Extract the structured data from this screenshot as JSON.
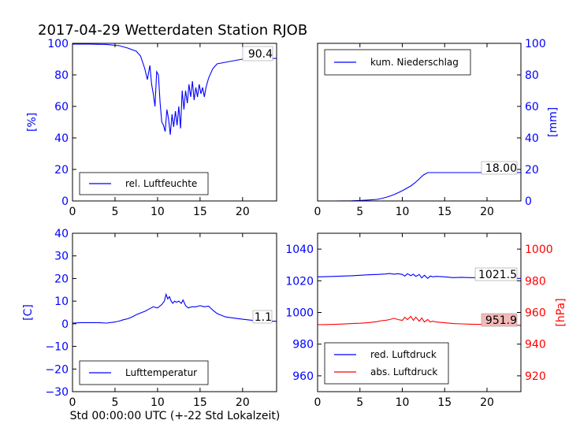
{
  "figure": {
    "title": "2017-04-29 Wetterdaten Station RJOB",
    "xlabel": "Std 00:00:00 UTC (+-22 Std Lokalzeit)"
  },
  "colors": {
    "blue": "#0000ff",
    "red": "#ff0000",
    "axis": "#000000",
    "badge_red": "#f4b9b9"
  },
  "chart_data": [
    {
      "type": "line",
      "id": "humidity",
      "xlim": [
        0,
        24
      ],
      "ylim": [
        0,
        100
      ],
      "xticks": [
        "0",
        "5",
        "10",
        "15",
        "20"
      ],
      "yticks": [
        "0",
        "20",
        "40",
        "60",
        "80",
        "100"
      ],
      "ylabel": "[%]",
      "legend": "lower-left",
      "last_value_label": "90.4",
      "series": [
        {
          "name": "rel. Luftfeuchte",
          "color": "#0000ff",
          "x": [
            0,
            2,
            4,
            5.5,
            6.5,
            7.5,
            8,
            8.5,
            8.8,
            9.1,
            9.3,
            9.5,
            9.7,
            9.9,
            10.1,
            10.3,
            10.5,
            10.7,
            10.9,
            11.1,
            11.3,
            11.5,
            11.7,
            11.9,
            12.1,
            12.3,
            12.5,
            12.7,
            12.9,
            13.1,
            13.3,
            13.5,
            13.7,
            13.9,
            14.1,
            14.3,
            14.5,
            14.7,
            14.9,
            15.1,
            15.3,
            15.5,
            15.7,
            16,
            16.5,
            17,
            18,
            19,
            20,
            21,
            22,
            23,
            24
          ],
          "y": [
            99.5,
            99.5,
            99.3,
            98.5,
            97,
            95,
            92,
            84,
            77,
            86,
            74,
            68,
            60,
            82,
            80,
            62,
            50,
            48,
            44,
            58,
            52,
            42,
            55,
            47,
            57,
            48,
            60,
            46,
            70,
            58,
            70,
            62,
            74,
            66,
            76,
            64,
            72,
            66,
            74,
            68,
            72,
            66,
            72,
            78,
            84,
            87,
            88,
            89,
            90,
            91,
            91,
            90.5,
            90.4
          ]
        }
      ]
    },
    {
      "type": "line",
      "id": "precip",
      "xlim": [
        0,
        24
      ],
      "ylim": [
        0,
        100
      ],
      "xticks": [
        "0",
        "5",
        "10",
        "15",
        "20"
      ],
      "yticks": [
        "0",
        "20",
        "40",
        "60",
        "80",
        "100"
      ],
      "ylabel": "[mm]",
      "legend": "top-left",
      "last_value_label": "18.00",
      "series": [
        {
          "name": "kum. Niederschlag",
          "color": "#0000ff",
          "x": [
            0,
            2,
            4,
            5,
            6,
            7,
            7.5,
            8,
            8.5,
            9,
            9.5,
            10,
            10.5,
            11,
            11.5,
            12,
            12.5,
            13,
            13.5,
            14,
            15,
            16,
            18,
            20,
            22,
            24
          ],
          "y": [
            0,
            0,
            0.1,
            0.3,
            0.6,
            1,
            1.5,
            2.2,
            3,
            4,
            5.2,
            6.5,
            8,
            9.5,
            11.5,
            14,
            16.5,
            18,
            18,
            18,
            18,
            18,
            18,
            18,
            18,
            18
          ]
        }
      ]
    },
    {
      "type": "line",
      "id": "temperature",
      "xlim": [
        0,
        24
      ],
      "ylim": [
        -30,
        40
      ],
      "xticks": [
        "0",
        "5",
        "10",
        "15",
        "20"
      ],
      "yticks": [
        "−30",
        "−20",
        "−10",
        "0",
        "10",
        "20",
        "30",
        "40"
      ],
      "ylabel": "[C]",
      "legend": "lower-left",
      "last_value_label": "1.1",
      "series": [
        {
          "name": "Lufttemperatur",
          "color": "#0000ff",
          "x": [
            0,
            1,
            2,
            3,
            4,
            5,
            5.5,
            6,
            6.5,
            7,
            7.5,
            8,
            8.5,
            9,
            9.5,
            10,
            10.5,
            10.8,
            11,
            11.2,
            11.4,
            11.6,
            11.8,
            12,
            12.2,
            12.5,
            12.8,
            13,
            13.3,
            13.6,
            14,
            14.5,
            15,
            15.5,
            16,
            16.5,
            17,
            18,
            19,
            20,
            21,
            22,
            23,
            24
          ],
          "y": [
            0.3,
            0.5,
            0.5,
            0.5,
            0.3,
            0.8,
            1.2,
            1.8,
            2.2,
            3,
            4,
            4.8,
            5.5,
            6.5,
            7.5,
            7,
            8.5,
            10,
            13,
            11,
            12,
            10,
            9,
            10,
            9.5,
            10,
            9,
            10.5,
            8,
            7,
            7.5,
            7.5,
            8,
            7.5,
            7.8,
            6,
            4.5,
            3,
            2.5,
            2,
            1.6,
            1.4,
            1.2,
            1.1
          ]
        }
      ]
    },
    {
      "type": "line",
      "id": "pressure",
      "xlim": [
        0,
        24
      ],
      "ylim": [
        950,
        1050
      ],
      "ylim_right": [
        910,
        1010
      ],
      "xticks": [
        "0",
        "5",
        "10",
        "15",
        "20"
      ],
      "yticks": [
        "960",
        "980",
        "1000",
        "1020",
        "1040"
      ],
      "yticks_right": [
        "920",
        "940",
        "960",
        "980",
        "1000"
      ],
      "ylabel_right": "[hPa]",
      "legend": "lower-left",
      "series": [
        {
          "name": "red. Luftdruck",
          "color": "#0000ff",
          "axis": "left",
          "last_value_label": "1021.5",
          "x": [
            0,
            1,
            2,
            3,
            4,
            5,
            6,
            7,
            8,
            8.5,
            9,
            9.5,
            10,
            10.3,
            10.6,
            11,
            11.3,
            11.6,
            12,
            12.3,
            12.6,
            13,
            13.3,
            13.6,
            14,
            15,
            16,
            17,
            18,
            19,
            20,
            21,
            22,
            23,
            24
          ],
          "y": [
            1022.5,
            1022.6,
            1022.8,
            1023,
            1023.2,
            1023.5,
            1023.8,
            1024,
            1024.3,
            1024.6,
            1024.2,
            1024.5,
            1024,
            1023,
            1024.5,
            1023.2,
            1024.2,
            1022.8,
            1024,
            1021.8,
            1023.5,
            1021.5,
            1023,
            1022.5,
            1022.8,
            1022.5,
            1022,
            1022.2,
            1022,
            1022,
            1021.8,
            1021.8,
            1021.6,
            1021.5,
            1021.5
          ]
        },
        {
          "name": "abs. Luftdruck",
          "color": "#ff0000",
          "axis": "right",
          "last_value_label": "951.9",
          "x": [
            0,
            1,
            2,
            3,
            4,
            5,
            6,
            7,
            7.5,
            8,
            8.5,
            9,
            9.5,
            10,
            10.3,
            10.6,
            11,
            11.3,
            11.6,
            12,
            12.3,
            12.6,
            13,
            13.3,
            13.6,
            14,
            15,
            16,
            17,
            18,
            19,
            20,
            21,
            22,
            23,
            24
          ],
          "y": [
            952.3,
            952.4,
            952.5,
            952.7,
            953,
            953.2,
            953.6,
            954.2,
            954.8,
            955,
            955.5,
            956.3,
            955.5,
            955,
            957,
            955.5,
            957.5,
            955,
            957,
            954.5,
            956.5,
            954,
            955.5,
            954,
            954.5,
            954,
            953.5,
            953,
            952.8,
            952.6,
            952.5,
            952.4,
            952.2,
            952,
            952,
            951.9
          ]
        }
      ]
    }
  ]
}
